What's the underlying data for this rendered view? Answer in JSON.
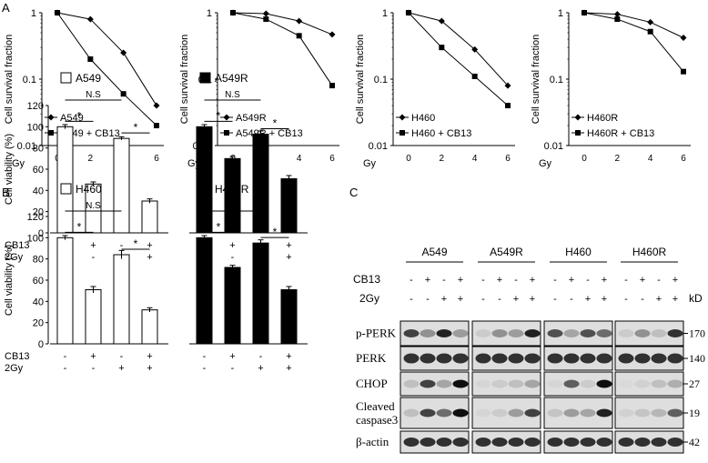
{
  "panel_labels": {
    "a": "A",
    "b": "B",
    "c": "C"
  },
  "survival": {
    "ylabel": "Cell survival fraction",
    "xlabel": "Gy",
    "y_ticks": [
      "1",
      "0.1",
      "0.01"
    ],
    "x_ticks": [
      "0",
      "2",
      "4",
      "6"
    ],
    "scale": "log"
  },
  "chart_data": [
    {
      "type": "line",
      "xlabel": "Gy",
      "ylabel": "Cell survival fraction",
      "yscale": "log",
      "ylim": [
        0.01,
        1
      ],
      "x": [
        0,
        2,
        4,
        6
      ],
      "series": [
        {
          "name": "A549",
          "marker": "diamond",
          "values": [
            1,
            0.8,
            0.25,
            0.04
          ]
        },
        {
          "name": "A549 + CB13",
          "marker": "square",
          "values": [
            1,
            0.2,
            0.06,
            0.02
          ]
        }
      ]
    },
    {
      "type": "line",
      "xlabel": "Gy",
      "ylabel": "Cell survival fraction",
      "yscale": "log",
      "ylim": [
        0.01,
        1
      ],
      "x": [
        0,
        2,
        4,
        6
      ],
      "series": [
        {
          "name": "A549R",
          "marker": "diamond",
          "values": [
            1,
            0.97,
            0.75,
            0.47
          ]
        },
        {
          "name": "A549R + CB13",
          "marker": "square",
          "values": [
            1,
            0.8,
            0.45,
            0.08
          ]
        }
      ]
    },
    {
      "type": "line",
      "xlabel": "Gy",
      "ylabel": "Cell survival fraction",
      "yscale": "log",
      "ylim": [
        0.01,
        1
      ],
      "x": [
        0,
        2,
        4,
        6
      ],
      "series": [
        {
          "name": "H460",
          "marker": "diamond",
          "values": [
            1,
            0.75,
            0.28,
            0.08
          ]
        },
        {
          "name": "H460 + CB13",
          "marker": "square",
          "values": [
            1,
            0.3,
            0.11,
            0.04
          ]
        }
      ]
    },
    {
      "type": "line",
      "xlabel": "Gy",
      "ylabel": "Cell survival fraction",
      "yscale": "log",
      "ylim": [
        0.01,
        1
      ],
      "x": [
        0,
        2,
        4,
        6
      ],
      "series": [
        {
          "name": "H460R",
          "marker": "diamond",
          "values": [
            1,
            0.95,
            0.72,
            0.42
          ]
        },
        {
          "name": "H460R + CB13",
          "marker": "square",
          "values": [
            1,
            0.8,
            0.52,
            0.13
          ]
        }
      ]
    },
    {
      "type": "bar",
      "ylabel": "Cell viability (%)",
      "ylim": [
        0,
        120
      ],
      "y_ticks": [
        0,
        20,
        40,
        60,
        80,
        100,
        120
      ],
      "groups": [
        {
          "name": "A549",
          "fill": "#ffffff",
          "values": [
            100,
            46,
            89,
            30
          ],
          "errors": [
            2,
            2,
            1.5,
            2
          ]
        },
        {
          "name": "A549R",
          "fill": "#000000",
          "values": [
            100,
            70,
            93,
            51
          ],
          "errors": [
            2,
            2,
            3,
            3
          ]
        }
      ]
    },
    {
      "type": "bar",
      "ylabel": "Cell viability (%)",
      "ylim": [
        0,
        120
      ],
      "y_ticks": [
        0,
        20,
        40,
        60,
        80,
        100,
        120
      ],
      "groups": [
        {
          "name": "H460",
          "fill": "#ffffff",
          "values": [
            100,
            51,
            84,
            32
          ],
          "errors": [
            2,
            3,
            4,
            2
          ]
        },
        {
          "name": "H460R",
          "fill": "#000000",
          "values": [
            100,
            72,
            95,
            51
          ],
          "errors": [
            2,
            2,
            3,
            3
          ]
        }
      ]
    }
  ],
  "viability": {
    "ylabel": "Cell viability (%)",
    "y_ticks": [
      "0",
      "20",
      "40",
      "60",
      "80",
      "100",
      "120"
    ],
    "row_labels": [
      "CB13",
      "2Gy"
    ],
    "cb13": [
      "-",
      "+",
      "-",
      "+"
    ],
    "gy": [
      "-",
      "-",
      "+",
      "+"
    ],
    "sig_star": "*",
    "sig_ns": "N.S"
  },
  "western": {
    "cell_lines": [
      "A549",
      "A549R",
      "H460",
      "H460R"
    ],
    "row_labels": [
      "CB13",
      "2Gy"
    ],
    "cb13": [
      "-",
      "+",
      "-",
      "+"
    ],
    "gy": [
      "-",
      "-",
      "+",
      "+"
    ],
    "kd_label": "kD",
    "proteins": [
      "p-PERK",
      "PERK",
      "CHOP",
      "Cleaved caspase3",
      "β-actin"
    ],
    "protein_lines": [
      [
        "p-PERK"
      ],
      [
        "PERK"
      ],
      [
        "CHOP"
      ],
      [
        "Cleaved",
        "caspase3"
      ],
      [
        "β-actin"
      ]
    ],
    "sizes": [
      "170",
      "140",
      "27",
      "19",
      "42"
    ],
    "intensity": [
      [
        [
          0.85,
          0.55,
          0.95,
          0.5
        ],
        [
          0.2,
          0.55,
          0.5,
          0.95
        ],
        [
          0.8,
          0.45,
          0.8,
          0.7
        ],
        [
          0.2,
          0.55,
          0.3,
          0.9
        ]
      ],
      [
        [
          0.9,
          0.9,
          0.9,
          0.9
        ],
        [
          0.9,
          0.9,
          0.9,
          0.9
        ],
        [
          0.9,
          0.9,
          0.9,
          0.9
        ],
        [
          0.9,
          0.9,
          0.9,
          0.9
        ]
      ],
      [
        [
          0.3,
          0.85,
          0.45,
          1.0
        ],
        [
          0.1,
          0.2,
          0.3,
          0.45
        ],
        [
          0.1,
          0.75,
          0.2,
          1.0
        ],
        [
          0.05,
          0.15,
          0.3,
          0.4
        ]
      ],
      [
        [
          0.3,
          0.85,
          0.7,
          1.0
        ],
        [
          0.1,
          0.2,
          0.5,
          0.85
        ],
        [
          0.25,
          0.5,
          0.45,
          0.95
        ],
        [
          0.15,
          0.25,
          0.35,
          0.75
        ]
      ],
      [
        [
          0.9,
          0.9,
          0.9,
          0.9
        ],
        [
          0.9,
          0.9,
          0.9,
          0.9
        ],
        [
          0.9,
          0.9,
          0.9,
          0.9
        ],
        [
          0.9,
          0.9,
          0.9,
          0.9
        ]
      ]
    ]
  }
}
